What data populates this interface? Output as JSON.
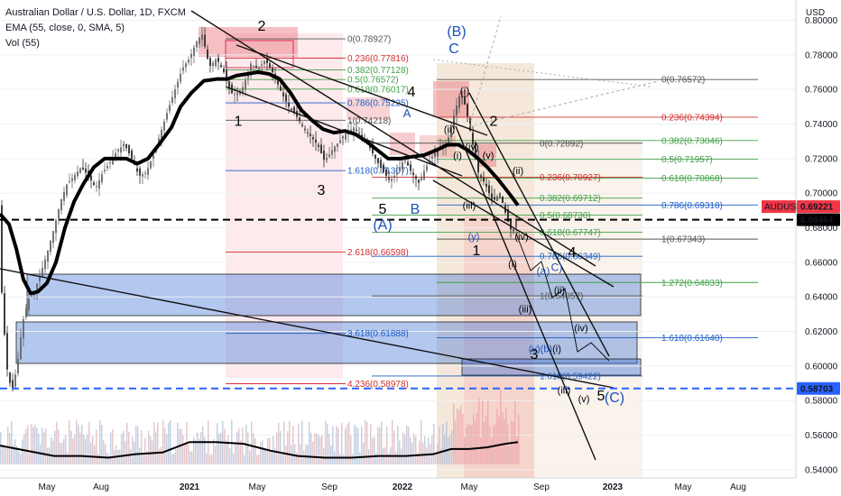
{
  "legend": {
    "title": "Australian Dollar / U.S. Dollar, 1D, FXCM",
    "ema": "EMA (55, close, 0, SMA, 5)",
    "vol": "Vol (55)"
  },
  "colors": {
    "candle": "#3d3d3d",
    "ema": "#000000",
    "fib_red": "#d32f2f",
    "fib_green": "#43a047",
    "fib_blue": "#1e5fc6",
    "fib_gray": "#555555",
    "label_red": "#d32f2f",
    "label_blue": "#1e50b8",
    "label_black": "#000000",
    "dash_black": "#000000",
    "dash_blue": "#2962ff",
    "box_blue": "#4a7bd8",
    "box_pink": "#f4a0a8",
    "box_orange": "#d9a36b",
    "price_badge": "#f23645"
  },
  "chart_data": {
    "type": "candlestick",
    "title": "Australian Dollar / U.S. Dollar, 1D, FXCM",
    "yaxis": {
      "unit": "USD",
      "ylim": [
        0.535,
        0.805
      ],
      "ticks": [
        "0.80000",
        "0.78000",
        "0.76000",
        "0.74000",
        "0.72000",
        "0.70000",
        "0.68000",
        "0.66000",
        "0.64000",
        "0.62000",
        "0.60000",
        "0.58000",
        "0.56000",
        "0.54000"
      ]
    },
    "xaxis": {
      "ticks": [
        "May",
        "Aug",
        "2021",
        "May",
        "Sep",
        "2022",
        "May",
        "Sep",
        "2023",
        "May",
        "Aug"
      ]
    },
    "price_labels": {
      "symbol": "AUDUSD",
      "last": "0.69221",
      "level_black": "0.68464",
      "level_blue": "0.58703"
    },
    "price_series": [
      [
        0,
        0.66
      ],
      [
        4,
        0.625
      ],
      [
        8,
        0.598
      ],
      [
        13,
        0.585
      ],
      [
        19,
        0.6
      ],
      [
        25,
        0.625
      ],
      [
        31,
        0.638
      ],
      [
        37,
        0.642
      ],
      [
        44,
        0.652
      ],
      [
        52,
        0.665
      ],
      [
        60,
        0.68
      ],
      [
        67,
        0.695
      ],
      [
        74,
        0.705
      ],
      [
        82,
        0.71
      ],
      [
        90,
        0.715
      ],
      [
        98,
        0.71
      ],
      [
        106,
        0.703
      ],
      [
        114,
        0.712
      ],
      [
        122,
        0.718
      ],
      [
        130,
        0.725
      ],
      [
        138,
        0.728
      ],
      [
        146,
        0.72
      ],
      [
        154,
        0.71
      ],
      [
        162,
        0.712
      ],
      [
        170,
        0.722
      ],
      [
        178,
        0.735
      ],
      [
        186,
        0.748
      ],
      [
        194,
        0.76
      ],
      [
        202,
        0.772
      ],
      [
        210,
        0.778
      ],
      [
        218,
        0.788
      ],
      [
        224,
        0.792
      ],
      [
        232,
        0.773
      ],
      [
        240,
        0.778
      ],
      [
        248,
        0.77
      ],
      [
        256,
        0.758
      ],
      [
        262,
        0.757
      ],
      [
        270,
        0.762
      ],
      [
        278,
        0.775
      ],
      [
        286,
        0.772
      ],
      [
        294,
        0.777
      ],
      [
        302,
        0.77
      ],
      [
        312,
        0.758
      ],
      [
        320,
        0.75
      ],
      [
        328,
        0.745
      ],
      [
        336,
        0.738
      ],
      [
        344,
        0.733
      ],
      [
        352,
        0.728
      ],
      [
        360,
        0.718
      ],
      [
        368,
        0.725
      ],
      [
        376,
        0.73
      ],
      [
        384,
        0.735
      ],
      [
        392,
        0.738
      ],
      [
        400,
        0.733
      ],
      [
        408,
        0.728
      ],
      [
        416,
        0.72
      ],
      [
        424,
        0.713
      ],
      [
        432,
        0.707
      ],
      [
        440,
        0.712
      ],
      [
        448,
        0.72
      ],
      [
        456,
        0.712
      ],
      [
        464,
        0.706
      ],
      [
        472,
        0.715
      ],
      [
        480,
        0.722
      ],
      [
        488,
        0.727
      ],
      [
        496,
        0.73
      ],
      [
        504,
        0.747
      ],
      [
        510,
        0.758
      ],
      [
        516,
        0.75
      ],
      [
        524,
        0.728
      ],
      [
        530,
        0.712
      ],
      [
        538,
        0.705
      ],
      [
        546,
        0.695
      ],
      [
        554,
        0.7
      ],
      [
        562,
        0.685
      ],
      [
        568,
        0.676
      ],
      [
        575,
        0.692
      ]
    ],
    "ema_series": [
      [
        0,
        0.688
      ],
      [
        10,
        0.682
      ],
      [
        18,
        0.668
      ],
      [
        26,
        0.65
      ],
      [
        34,
        0.642
      ],
      [
        42,
        0.643
      ],
      [
        52,
        0.648
      ],
      [
        62,
        0.66
      ],
      [
        72,
        0.68
      ],
      [
        82,
        0.695
      ],
      [
        92,
        0.705
      ],
      [
        104,
        0.715
      ],
      [
        116,
        0.72
      ],
      [
        128,
        0.72
      ],
      [
        140,
        0.72
      ],
      [
        152,
        0.717
      ],
      [
        164,
        0.72
      ],
      [
        176,
        0.728
      ],
      [
        190,
        0.738
      ],
      [
        200,
        0.75
      ],
      [
        212,
        0.758
      ],
      [
        226,
        0.765
      ],
      [
        240,
        0.766
      ],
      [
        252,
        0.766
      ],
      [
        262,
        0.768
      ],
      [
        274,
        0.769
      ],
      [
        286,
        0.77
      ],
      [
        298,
        0.769
      ],
      [
        310,
        0.766
      ],
      [
        322,
        0.758
      ],
      [
        334,
        0.748
      ],
      [
        346,
        0.742
      ],
      [
        358,
        0.737
      ],
      [
        370,
        0.735
      ],
      [
        382,
        0.736
      ],
      [
        394,
        0.734
      ],
      [
        406,
        0.73
      ],
      [
        418,
        0.725
      ],
      [
        430,
        0.72
      ],
      [
        444,
        0.72
      ],
      [
        456,
        0.721
      ],
      [
        470,
        0.722
      ],
      [
        484,
        0.725
      ],
      [
        496,
        0.728
      ],
      [
        508,
        0.728
      ],
      [
        518,
        0.725
      ],
      [
        530,
        0.72
      ],
      [
        540,
        0.715
      ],
      [
        552,
        0.708
      ],
      [
        564,
        0.7
      ],
      [
        574,
        0.693
      ]
    ],
    "volume_series": [
      [
        0,
        0.554
      ],
      [
        30,
        0.551
      ],
      [
        60,
        0.548
      ],
      [
        90,
        0.548
      ],
      [
        120,
        0.547
      ],
      [
        150,
        0.549
      ],
      [
        180,
        0.55
      ],
      [
        210,
        0.556
      ],
      [
        240,
        0.556
      ],
      [
        270,
        0.555
      ],
      [
        300,
        0.551
      ],
      [
        330,
        0.548
      ],
      [
        360,
        0.547
      ],
      [
        390,
        0.547
      ],
      [
        420,
        0.548
      ],
      [
        450,
        0.548
      ],
      [
        480,
        0.549
      ],
      [
        500,
        0.552
      ],
      [
        520,
        0.552
      ],
      [
        540,
        0.553
      ],
      [
        560,
        0.555
      ],
      [
        574,
        0.556
      ]
    ]
  },
  "fib_sets": [
    {
      "x": 385,
      "color_key": "fib_gray",
      "text": "0(0.78927)",
      "value": 0.78927
    },
    {
      "x": 385,
      "color_key": "fib_red",
      "text": "0.236(0.77816)",
      "value": 0.77816
    },
    {
      "x": 385,
      "color_key": "fib_green",
      "text": "0.382(0.77128)",
      "value": 0.77128
    },
    {
      "x": 385,
      "color_key": "fib_green",
      "text": "0.5(0.76572)",
      "value": 0.76572
    },
    {
      "x": 385,
      "color_key": "fib_green",
      "text": "0.618(0.76017)",
      "value": 0.76017
    },
    {
      "x": 385,
      "color_key": "fib_blue",
      "text": "0.786(0.75225)",
      "value": 0.75225
    },
    {
      "x": 385,
      "color_key": "fib_gray",
      "text": "1(0.74218)",
      "value": 0.74218
    },
    {
      "x": 385,
      "color_key": "fib_blue",
      "text": "1.618(0.71307)",
      "value": 0.71307
    },
    {
      "x": 385,
      "color_key": "fib_red",
      "text": "2.618(0.66598)",
      "value": 0.66598
    },
    {
      "x": 385,
      "color_key": "fib_blue",
      "text": "3.618(0.61888)",
      "value": 0.61888
    },
    {
      "x": 385,
      "color_key": "fib_red",
      "text": "4.236(0.58978)",
      "value": 0.58978
    },
    {
      "x": 733,
      "color_key": "fib_gray",
      "text": "0(0.76572)",
      "value": 0.76572
    },
    {
      "x": 733,
      "color_key": "fib_red",
      "text": "0.236(0.74394)",
      "value": 0.74394
    },
    {
      "x": 733,
      "color_key": "fib_green",
      "text": "0.382(0.73046)",
      "value": 0.73046
    },
    {
      "x": 733,
      "color_key": "fib_green",
      "text": "0.5(0.71957)",
      "value": 0.71957
    },
    {
      "x": 733,
      "color_key": "fib_green",
      "text": "0.618(0.70868)",
      "value": 0.70868
    },
    {
      "x": 733,
      "color_key": "fib_blue",
      "text": "0.786(0.69318)",
      "value": 0.69318
    },
    {
      "x": 733,
      "color_key": "fib_gray",
      "text": "1(0.67343)",
      "value": 0.67343
    },
    {
      "x": 733,
      "color_key": "fib_green",
      "text": "1.272(0.64833)",
      "value": 0.64833
    },
    {
      "x": 733,
      "color_key": "fib_blue",
      "text": "1.618(0.61640)",
      "value": 0.6164
    },
    {
      "x": 598,
      "color_key": "fib_gray",
      "text": "0(0.72892)",
      "value": 0.72892
    },
    {
      "x": 598,
      "color_key": "fib_red",
      "text": "0.236(0.70927)",
      "value": 0.70927
    },
    {
      "x": 598,
      "color_key": "fib_green",
      "text": "0.382(0.69712)",
      "value": 0.69712
    },
    {
      "x": 598,
      "color_key": "fib_green",
      "text": "0.5(0.68730)",
      "value": 0.6873
    },
    {
      "x": 598,
      "color_key": "fib_green",
      "text": "0.618(0.67747)",
      "value": 0.67747
    },
    {
      "x": 598,
      "color_key": "fib_blue",
      "text": "0.786(0.66349)",
      "value": 0.66349
    },
    {
      "x": 598,
      "color_key": "fib_gray",
      "text": "1(0.64057)",
      "value": 0.64057
    },
    {
      "x": 598,
      "color_key": "fib_blue",
      "text": "1.618(0.59422)",
      "value": 0.59422
    }
  ],
  "wave_labels": [
    {
      "text": "2",
      "x": 290,
      "y": 0.794,
      "color_key": "label_black",
      "size": 16
    },
    {
      "text": "1",
      "x": 264,
      "y": 0.739,
      "color_key": "label_black",
      "size": 16
    },
    {
      "text": "3",
      "x": 356,
      "y": 0.699,
      "color_key": "label_black",
      "size": 16
    },
    {
      "text": "4",
      "x": 456,
      "y": 0.756,
      "color_key": "label_black",
      "size": 16
    },
    {
      "text": "A",
      "x": 451,
      "y": 0.744,
      "color_key": "label_blue",
      "size": 13
    },
    {
      "text": "5",
      "x": 424,
      "y": 0.688,
      "color_key": "label_black",
      "size": 16
    },
    {
      "text": "B",
      "x": 460,
      "y": 0.688,
      "color_key": "label_blue",
      "size": 16
    },
    {
      "text": "(A)",
      "x": 424,
      "y": 0.679,
      "color_key": "label_blue",
      "size": 16
    },
    {
      "text": "(B)",
      "x": 506,
      "y": 0.791,
      "color_key": "label_blue",
      "size": 16
    },
    {
      "text": "C",
      "x": 503,
      "y": 0.781,
      "color_key": "label_blue",
      "size": 16
    },
    {
      "text": "(i)",
      "x": 515,
      "y": 0.757,
      "color_key": "label_black",
      "size": 12
    },
    {
      "text": "2",
      "x": 547,
      "y": 0.739,
      "color_key": "label_black",
      "size": 16
    },
    {
      "text": "(ii)",
      "x": 498,
      "y": 0.735,
      "color_key": "label_black",
      "size": 11
    },
    {
      "text": "(iv)",
      "x": 523,
      "y": 0.725,
      "color_key": "label_black",
      "size": 11
    },
    {
      "text": "(i)",
      "x": 507,
      "y": 0.72,
      "color_key": "label_black",
      "size": 11
    },
    {
      "text": "(v)",
      "x": 541,
      "y": 0.72,
      "color_key": "label_black",
      "size": 11
    },
    {
      "text": "(ii)",
      "x": 574,
      "y": 0.711,
      "color_key": "label_black",
      "size": 11
    },
    {
      "text": "(iii)",
      "x": 520,
      "y": 0.691,
      "color_key": "label_black",
      "size": 11
    },
    {
      "text": "(iv)",
      "x": 578,
      "y": 0.673,
      "color_key": "label_black",
      "size": 11
    },
    {
      "text": "(y)",
      "x": 525,
      "y": 0.673,
      "color_key": "label_blue",
      "size": 11
    },
    {
      "text": "1",
      "x": 528,
      "y": 0.664,
      "color_key": "label_black",
      "size": 16
    },
    {
      "text": "4",
      "x": 634,
      "y": 0.663,
      "color_key": "label_black",
      "size": 16
    },
    {
      "text": "(i)",
      "x": 568,
      "y": 0.657,
      "color_key": "label_black",
      "size": 11
    },
    {
      "text": "(a)",
      "x": 602,
      "y": 0.653,
      "color_key": "label_blue",
      "size": 12
    },
    {
      "text": "C)",
      "x": 617,
      "y": 0.655,
      "color_key": "label_blue",
      "size": 12
    },
    {
      "text": "(ii)",
      "x": 620,
      "y": 0.642,
      "color_key": "label_black",
      "size": 11
    },
    {
      "text": "(iii)",
      "x": 582,
      "y": 0.631,
      "color_key": "label_black",
      "size": 11
    },
    {
      "text": "(iv)",
      "x": 644,
      "y": 0.62,
      "color_key": "label_black",
      "size": 11
    },
    {
      "text": "(v)(b)",
      "x": 599,
      "y": 0.608,
      "color_key": "label_blue",
      "size": 11
    },
    {
      "text": "3",
      "x": 592,
      "y": 0.604,
      "color_key": "label_black",
      "size": 16
    },
    {
      "text": "(i)",
      "x": 617,
      "y": 0.608,
      "color_key": "label_black",
      "size": 11
    },
    {
      "text": "(iii)",
      "x": 625,
      "y": 0.584,
      "color_key": "label_black",
      "size": 11
    },
    {
      "text": "(v)",
      "x": 647,
      "y": 0.579,
      "color_key": "label_black",
      "size": 11
    },
    {
      "text": "5",
      "x": 666,
      "y": 0.58,
      "color_key": "label_black",
      "size": 16
    },
    {
      "text": "(C)",
      "x": 681,
      "y": 0.579,
      "color_key": "label_blue",
      "size": 16
    }
  ]
}
